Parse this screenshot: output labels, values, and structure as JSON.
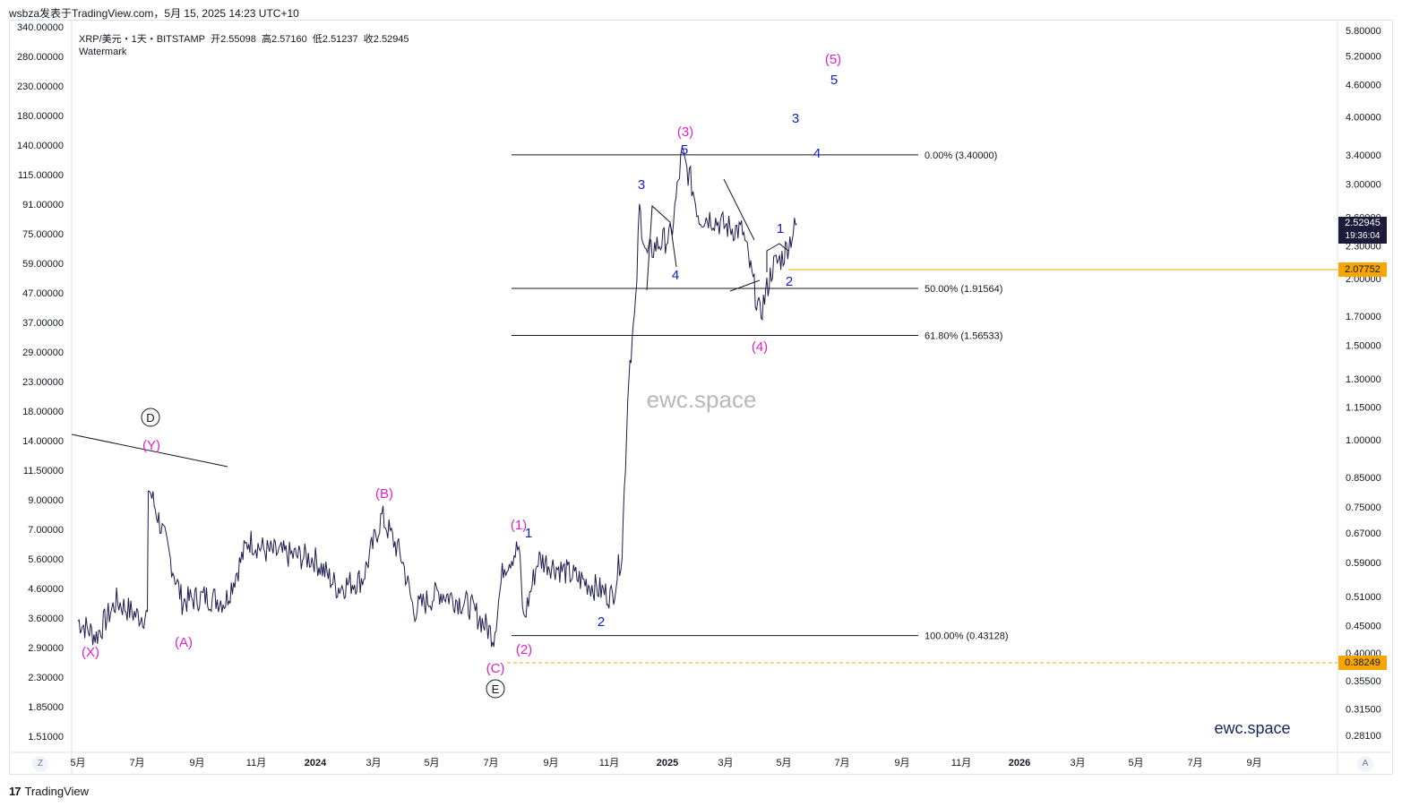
{
  "header": {
    "text": "wsbza发表于TradingView.com，5月 15, 2025 14:23 UTC+10"
  },
  "legend": {
    "symbol": "XRP/美元・1天・BITSTAMP",
    "open_label": "开",
    "open": "2.55098",
    "high_label": "高",
    "high": "2.57160",
    "low_label": "低",
    "low": "2.51237",
    "close_label": "收",
    "close": "2.52945",
    "watermark_label": "Watermark"
  },
  "watermark": {
    "center": "ewc.space",
    "corner": "ewc.space"
  },
  "corner_buttons": {
    "left": "Z",
    "right": "A"
  },
  "footer": {
    "brand_mark": "17",
    "brand": "TradingView"
  },
  "price_tags": {
    "current": {
      "price": "2.52945",
      "countdown": "19:36:04",
      "color": "#1e1b3a"
    },
    "orange": {
      "price": "2.07752",
      "color": "#f7a600"
    },
    "orange2": {
      "price": "0.38249",
      "color": "#f7a600"
    }
  },
  "chart_data": {
    "type": "line",
    "symbol": "XRP/USD",
    "scale": "log",
    "line_color": "#1e1b4f",
    "right_axis": [
      "5.80000",
      "5.20000",
      "4.60000",
      "4.00000",
      "3.40000",
      "3.00000",
      "2.60000",
      "2.30000",
      "2.00000",
      "1.70000",
      "1.50000",
      "1.30000",
      "1.15000",
      "1.00000",
      "0.85000",
      "0.75000",
      "0.67000",
      "0.59000",
      "0.51000",
      "0.45000",
      "0.40000",
      "0.35500",
      "0.31500",
      "0.28100"
    ],
    "left_axis": [
      "340.00000",
      "280.00000",
      "230.00000",
      "180.00000",
      "140.00000",
      "115.00000",
      "91.00000",
      "75.00000",
      "59.00000",
      "47.00000",
      "37.00000",
      "29.00000",
      "23.00000",
      "18.00000",
      "14.00000",
      "11.50000",
      "9.00000",
      "7.00000",
      "5.60000",
      "4.60000",
      "3.60000",
      "2.90000",
      "2.30000",
      "1.85000",
      "1.51000"
    ],
    "x_axis": [
      "5月",
      "7月",
      "9月",
      "11月",
      "2024",
      "3月",
      "5月",
      "7月",
      "9月",
      "11月",
      "2025",
      "3月",
      "5月",
      "7月",
      "9月",
      "11月",
      "2026",
      "3月",
      "5月",
      "7月",
      "9月"
    ],
    "series": [
      {
        "x": [
          "2023-05-01",
          "2023-05-20",
          "2023-06-10",
          "2023-07-01",
          "2023-07-12",
          "2023-07-13",
          "2023-07-25",
          "2023-08-17",
          "2023-09-10",
          "2023-10-01",
          "2023-10-25",
          "2023-11-12",
          "2023-12-05",
          "2024-01-01",
          "2024-01-25",
          "2024-02-20",
          "2024-03-11",
          "2024-04-01",
          "2024-04-13",
          "2024-05-10",
          "2024-06-10",
          "2024-07-05",
          "2024-07-15",
          "2024-07-31",
          "2024-08-05",
          "2024-08-20",
          "2024-09-15",
          "2024-10-10",
          "2024-11-05",
          "2024-11-15",
          "2024-11-22",
          "2024-11-29",
          "2024-12-03",
          "2024-12-10",
          "2024-12-20",
          "2025-01-05",
          "2025-01-16",
          "2025-01-25",
          "2025-02-03",
          "2025-02-15",
          "2025-03-02",
          "2025-03-20",
          "2025-04-07",
          "2025-04-20",
          "2025-05-01",
          "2025-05-15"
        ],
        "values": [
          0.46,
          0.43,
          0.5,
          0.47,
          0.47,
          0.82,
          0.7,
          0.5,
          0.51,
          0.5,
          0.65,
          0.62,
          0.61,
          0.6,
          0.53,
          0.55,
          0.72,
          0.6,
          0.48,
          0.52,
          0.49,
          0.43,
          0.58,
          0.63,
          0.46,
          0.6,
          0.57,
          0.54,
          0.51,
          0.62,
          1.35,
          1.75,
          2.7,
          2.2,
          2.3,
          2.4,
          3.4,
          3.05,
          2.6,
          2.6,
          2.5,
          2.45,
          1.7,
          2.1,
          2.2,
          2.53
        ]
      }
    ],
    "fib_levels": [
      {
        "label": "0.00% (3.40000)",
        "value": 3.4
      },
      {
        "label": "50.00% (1.91564)",
        "value": 1.91564
      },
      {
        "label": "61.80% (1.56533)",
        "value": 1.56533
      },
      {
        "label": "100.00% (0.43128)",
        "value": 0.43128
      }
    ],
    "wave_labels": {
      "magenta": [
        "(X)",
        "(Y)",
        "(A)",
        "(B)",
        "(C)",
        "(1)",
        "(2)",
        "(3)",
        "(4)",
        "(5)"
      ],
      "blue": [
        "1",
        "2",
        "3",
        "4",
        "5",
        "3",
        "4",
        "5",
        "1",
        "2",
        "3",
        "4",
        "5"
      ],
      "circled": [
        "D",
        "E"
      ]
    },
    "colors": {
      "magenta": "#e020c8",
      "blue": "#1020c8",
      "orange": "#f7a600",
      "trend": "#131722"
    }
  }
}
